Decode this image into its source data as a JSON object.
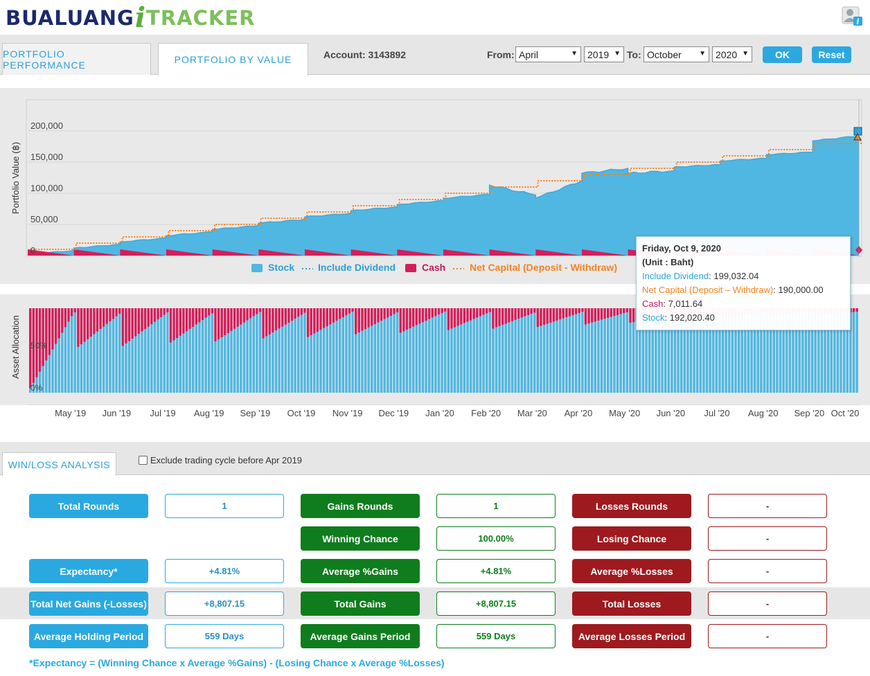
{
  "header": {
    "logo_prefix": "BUALUANG",
    "logo_i": "i",
    "logo_suffix": "TRACKER",
    "help_icon": "user-help-icon"
  },
  "tabs": [
    {
      "label": "PORTFOLIO PERFORMANCE",
      "active": false
    },
    {
      "label": "PORTFOLIO BY VALUE",
      "active": true
    }
  ],
  "account": {
    "label": "Account: 3143892"
  },
  "date_range": {
    "from_label": "From:",
    "from_month": "April",
    "from_year": "2019",
    "to_label": "To:",
    "to_month": "October",
    "to_year": "2020",
    "ok_label": "OK",
    "reset_label": "Reset"
  },
  "legend": {
    "stock": "Stock",
    "dividend": "Include Dividend",
    "cash": "Cash",
    "net_capital": "Net Capital (Deposit - Withdraw)"
  },
  "tooltip": {
    "date": "Friday, Oct 9, 2020",
    "unit": "(Unit : Baht)",
    "dividend_label": "Include Dividend",
    "dividend_value": "199,032.04",
    "net_label": "Net Capital (Deposit – Withdraw)",
    "net_value": "190,000.00",
    "cash_label": "Cash",
    "cash_value": "7,011.64",
    "stock_label": "Stock",
    "stock_value": "192,020.40"
  },
  "colors": {
    "stock": "#50b7e2",
    "dividend": "#2ba3dd",
    "cash": "#d21f5a",
    "net_capital": "#f5821f",
    "blue_button": "#2aa9e0",
    "green": "#0f7d1d",
    "red": "#9e1a1f"
  },
  "chart_data": [
    {
      "type": "area",
      "ylabel": "Portfolio Value (฿)",
      "ylim": [
        0,
        200000
      ],
      "yticks": [
        "0",
        "50,000",
        "100,000",
        "150,000",
        "200,000"
      ],
      "x_labels": [
        "May '19",
        "Jun '19",
        "Jul '19",
        "Aug '19",
        "Sep '19",
        "Oct '19",
        "Nov '19",
        "Dec '19",
        "Jan '20",
        "Feb '20",
        "Mar '20",
        "Apr '20",
        "May '20",
        "Jun '20",
        "Jul '20",
        "Aug '20",
        "Sep '20",
        "Oct '20"
      ],
      "series": [
        {
          "name": "Stock",
          "x": [
            "Apr '19",
            "May '19",
            "Jun '19",
            "Jul '19",
            "Aug '19",
            "Sep '19",
            "Oct '19",
            "Nov '19",
            "Dec '19",
            "Jan '20",
            "Feb '20",
            "Mar '20",
            "Mar '20 (mid)",
            "Apr '20",
            "May '20",
            "Jun '20",
            "Jul '20",
            "Aug '20",
            "Sep '20",
            "Oct '20"
          ],
          "values": [
            0,
            18000,
            28000,
            38000,
            50000,
            60000,
            70000,
            80000,
            88000,
            97000,
            104000,
            113000,
            95000,
            94000,
            132000,
            150000,
            158000,
            170000,
            182000,
            192020
          ]
        },
        {
          "name": "Net Capital (Deposit - Withdraw)",
          "x": [
            "Apr '19",
            "May '19",
            "Jun '19",
            "Jul '19",
            "Aug '19",
            "Sep '19",
            "Oct '19",
            "Nov '19",
            "Dec '19",
            "Jan '20",
            "Feb '20",
            "Mar '20",
            "Apr '20",
            "May '20",
            "Jun '20",
            "Jul '20",
            "Aug '20",
            "Sep '20",
            "Oct '20"
          ],
          "values": [
            10000,
            20000,
            30000,
            40000,
            50000,
            60000,
            70000,
            80000,
            90000,
            100000,
            110000,
            120000,
            130000,
            140000,
            150000,
            160000,
            170000,
            180000,
            190000
          ]
        },
        {
          "name": "Cash",
          "values_note": "drops to near zero after each monthly deposit",
          "values": [
            10000,
            10000,
            10000,
            10000,
            10000,
            10000,
            10000,
            10000,
            10000,
            10000,
            10000,
            10000,
            10000,
            10000,
            10000,
            10000,
            10000,
            10000,
            7012
          ]
        }
      ]
    },
    {
      "type": "bar",
      "ylabel": "Asset Allocation",
      "yticks": [
        "0%",
        "50%"
      ],
      "series": [
        {
          "name": "Stock",
          "values_note": "share of portfolio in stock, rising within each month"
        },
        {
          "name": "Cash"
        }
      ]
    }
  ],
  "winloss": {
    "tab_label": "WIN/LOSS ANALYSIS",
    "exclude_label": "Exclude trading cycle before Apr 2019",
    "rows": [
      {
        "l1": "Total Rounds",
        "v1": "1",
        "l2": "Gains Rounds",
        "v2": "1",
        "l3": "Losses Rounds",
        "v3": "-"
      },
      {
        "l1": "",
        "v1": "",
        "l2": "Winning Chance",
        "v2": "100.00%",
        "l3": "Losing Chance",
        "v3": "-"
      },
      {
        "l1": "Expectancy*",
        "v1": "+4.81%",
        "l2": "Average %Gains",
        "v2": "+4.81%",
        "l3": "Average %Losses",
        "v3": "-"
      },
      {
        "l1": "Total Net Gains (-Losses)",
        "v1": "+8,807.15",
        "l2": "Total Gains",
        "v2": "+8,807.15",
        "l3": "Total Losses",
        "v3": "-"
      },
      {
        "l1": "Average Holding Period",
        "v1": "559 Days",
        "l2": "Average Gains Period",
        "v2": "559 Days",
        "l3": "Average Losses Period",
        "v3": "-"
      }
    ],
    "footnote": "*Expectancy = (Winning Chance x Average %Gains) - (Losing Chance x Average %Losses)"
  }
}
